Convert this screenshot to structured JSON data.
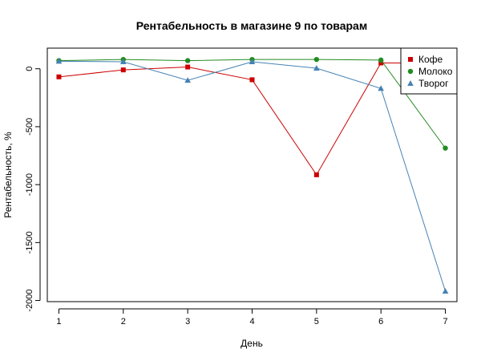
{
  "chart_data": {
    "type": "line",
    "title": "Рентабельность в магазине 9 по товарам",
    "xlabel": "День",
    "ylabel": "Рентабельность, %",
    "x": [
      1,
      2,
      3,
      4,
      5,
      6,
      7
    ],
    "xticks": [
      "1",
      "2",
      "3",
      "4",
      "5",
      "6",
      "7"
    ],
    "yticks": [
      "0",
      "-500",
      "-1000",
      "-1500",
      "-2000"
    ],
    "ytick_values": [
      0,
      -500,
      -1000,
      -1500,
      -2000
    ],
    "xlim": [
      0.82,
      7.18
    ],
    "ylim": [
      -2010,
      178
    ],
    "grid": false,
    "legend_position": "top-right",
    "series": [
      {
        "name": "Кофе",
        "color": "#cc0000",
        "marker": "square",
        "values": [
          -70,
          -10,
          15,
          -95,
          -915,
          50,
          50
        ]
      },
      {
        "name": "Молоко",
        "color": "#228b22",
        "marker": "circle",
        "values": [
          70,
          80,
          70,
          80,
          80,
          75,
          -685
        ]
      },
      {
        "name": "Творог",
        "color": "#4682b4",
        "marker": "triangle",
        "values": [
          65,
          60,
          -100,
          60,
          5,
          -170,
          -1920
        ]
      }
    ]
  }
}
